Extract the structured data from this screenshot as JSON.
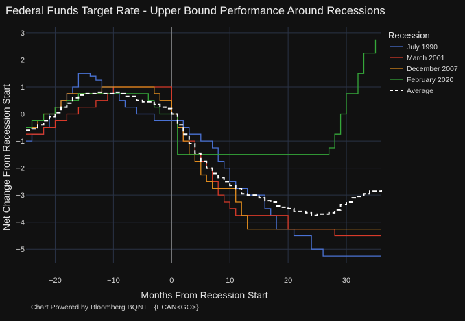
{
  "chart_data": {
    "type": "line",
    "title": "Federal Funds Target Rate - Upper Bound Performance Around Recessions",
    "xlabel": "Months From Recession Start",
    "ylabel": "Net Change From Recession Start",
    "xlim": [
      -25,
      36
    ],
    "ylim": [
      -5.5,
      3.2
    ],
    "xticks": [
      -20,
      -10,
      0,
      10,
      20,
      30
    ],
    "yticks": [
      3,
      2,
      1,
      0,
      -1,
      -2,
      -3,
      -4,
      -5
    ],
    "tick_labels_x": [
      "−20",
      "−10",
      "0",
      "10",
      "20",
      "30"
    ],
    "tick_labels_y": [
      "3",
      "2",
      "1",
      "0",
      "−1",
      "−2",
      "−3",
      "−4",
      "−5"
    ],
    "legend_title": "Recession",
    "legend_position": "top-right",
    "series": [
      {
        "name": "July 1990",
        "color": "#4a72d4",
        "step": true,
        "points": [
          [
            -25,
            -1.0
          ],
          [
            -24,
            -0.75
          ],
          [
            -22,
            -0.5
          ],
          [
            -21,
            0.0
          ],
          [
            -20,
            0.25
          ],
          [
            -19,
            0.5
          ],
          [
            -18,
            0.75
          ],
          [
            -17,
            1.0
          ],
          [
            -16,
            1.5
          ],
          [
            -14,
            1.4
          ],
          [
            -13,
            1.25
          ],
          [
            -12,
            1.0
          ],
          [
            -10,
            0.75
          ],
          [
            -9,
            0.5
          ],
          [
            -8,
            0.25
          ],
          [
            -6,
            0.0
          ],
          [
            -3,
            -0.25
          ],
          [
            1,
            -0.25
          ],
          [
            2,
            -0.5
          ],
          [
            3,
            -0.75
          ],
          [
            5,
            -1.0
          ],
          [
            7,
            -1.25
          ],
          [
            8,
            -1.75
          ],
          [
            9,
            -2.0
          ],
          [
            10,
            -2.5
          ],
          [
            11,
            -2.75
          ],
          [
            13,
            -3.0
          ],
          [
            16,
            -3.5
          ],
          [
            17,
            -3.75
          ],
          [
            18,
            -4.25
          ],
          [
            21,
            -4.5
          ],
          [
            24,
            -5.0
          ],
          [
            26,
            -5.25
          ],
          [
            36,
            -5.25
          ]
        ]
      },
      {
        "name": "March 2001",
        "color": "#d83a2a",
        "step": true,
        "points": [
          [
            -25,
            -0.75
          ],
          [
            -22,
            -0.5
          ],
          [
            -20,
            -0.25
          ],
          [
            -18,
            0.0
          ],
          [
            -16,
            0.25
          ],
          [
            -13,
            0.5
          ],
          [
            -11,
            0.75
          ],
          [
            -10,
            1.0
          ],
          [
            -1,
            1.0
          ],
          [
            0,
            0.0
          ],
          [
            1,
            -0.5
          ],
          [
            2,
            -1.0
          ],
          [
            4,
            -1.5
          ],
          [
            5,
            -1.75
          ],
          [
            6,
            -2.0
          ],
          [
            7,
            -2.5
          ],
          [
            8,
            -3.0
          ],
          [
            9,
            -3.25
          ],
          [
            10,
            -3.5
          ],
          [
            11,
            -3.75
          ],
          [
            20,
            -4.25
          ],
          [
            28,
            -4.5
          ],
          [
            36,
            -4.5
          ]
        ]
      },
      {
        "name": "December 2007",
        "color": "#e08c1e",
        "step": true,
        "points": [
          [
            -25,
            -0.5
          ],
          [
            -23,
            -0.25
          ],
          [
            -22,
            0.0
          ],
          [
            -20,
            0.25
          ],
          [
            -19,
            0.5
          ],
          [
            -18,
            0.75
          ],
          [
            -12,
            1.0
          ],
          [
            -3,
            0.75
          ],
          [
            -2,
            0.5
          ],
          [
            0,
            0.0
          ],
          [
            1,
            -0.5
          ],
          [
            2,
            -1.0
          ],
          [
            3,
            -1.5
          ],
          [
            4,
            -1.75
          ],
          [
            5,
            -2.25
          ],
          [
            6,
            -2.5
          ],
          [
            7,
            -2.75
          ],
          [
            11,
            -3.25
          ],
          [
            12,
            -3.75
          ],
          [
            13,
            -4.25
          ],
          [
            28,
            -4.25
          ],
          [
            36,
            -4.25
          ]
        ]
      },
      {
        "name": "February 2020",
        "color": "#35a83a",
        "step": true,
        "points": [
          [
            -25,
            -0.5
          ],
          [
            -24,
            -0.25
          ],
          [
            -22,
            0.0
          ],
          [
            -20,
            0.25
          ],
          [
            -18,
            0.5
          ],
          [
            -16,
            0.75
          ],
          [
            -4,
            0.5
          ],
          [
            -3,
            0.25
          ],
          [
            -2,
            0.0
          ],
          [
            0,
            0.0
          ],
          [
            1,
            -1.5
          ],
          [
            26,
            -1.5
          ],
          [
            27,
            -1.25
          ],
          [
            28,
            -0.75
          ],
          [
            29,
            0.0
          ],
          [
            30,
            0.75
          ],
          [
            32,
            1.5
          ],
          [
            33,
            2.25
          ],
          [
            35,
            2.75
          ],
          [
            35,
            2.75
          ]
        ]
      },
      {
        "name": "Average",
        "color": "#ffffff",
        "dashed": true,
        "step": true,
        "points": [
          [
            -25,
            -0.6
          ],
          [
            -24,
            -0.55
          ],
          [
            -23,
            -0.4
          ],
          [
            -22,
            -0.25
          ],
          [
            -21,
            -0.1
          ],
          [
            -20,
            0.05
          ],
          [
            -19,
            0.25
          ],
          [
            -18,
            0.4
          ],
          [
            -17,
            0.6
          ],
          [
            -16,
            0.7
          ],
          [
            -15,
            0.75
          ],
          [
            -13,
            0.8
          ],
          [
            -12,
            0.75
          ],
          [
            -10,
            0.8
          ],
          [
            -9,
            0.75
          ],
          [
            -8,
            0.65
          ],
          [
            -6,
            0.5
          ],
          [
            -5,
            0.45
          ],
          [
            -3,
            0.35
          ],
          [
            -2,
            0.25
          ],
          [
            -1,
            0.2
          ],
          [
            0,
            0.0
          ],
          [
            1,
            -0.4
          ],
          [
            2,
            -0.75
          ],
          [
            3,
            -1.1
          ],
          [
            4,
            -1.45
          ],
          [
            5,
            -1.75
          ],
          [
            6,
            -2.0
          ],
          [
            7,
            -2.2
          ],
          [
            8,
            -2.35
          ],
          [
            9,
            -2.5
          ],
          [
            10,
            -2.65
          ],
          [
            11,
            -2.75
          ],
          [
            12,
            -2.95
          ],
          [
            13,
            -3.0
          ],
          [
            15,
            -3.1
          ],
          [
            16,
            -3.2
          ],
          [
            17,
            -3.25
          ],
          [
            18,
            -3.4
          ],
          [
            19,
            -3.45
          ],
          [
            20,
            -3.5
          ],
          [
            21,
            -3.6
          ],
          [
            23,
            -3.65
          ],
          [
            24,
            -3.75
          ],
          [
            25,
            -3.7
          ],
          [
            27,
            -3.65
          ],
          [
            28,
            -3.55
          ],
          [
            29,
            -3.35
          ],
          [
            30,
            -3.25
          ],
          [
            31,
            -3.1
          ],
          [
            32,
            -3.05
          ],
          [
            33,
            -2.95
          ],
          [
            34,
            -2.85
          ],
          [
            36,
            -2.8
          ]
        ]
      }
    ]
  },
  "footer": {
    "powered_by": "Chart Powered by Bloomberg BQNT",
    "command": "{ECAN<GO>}"
  }
}
